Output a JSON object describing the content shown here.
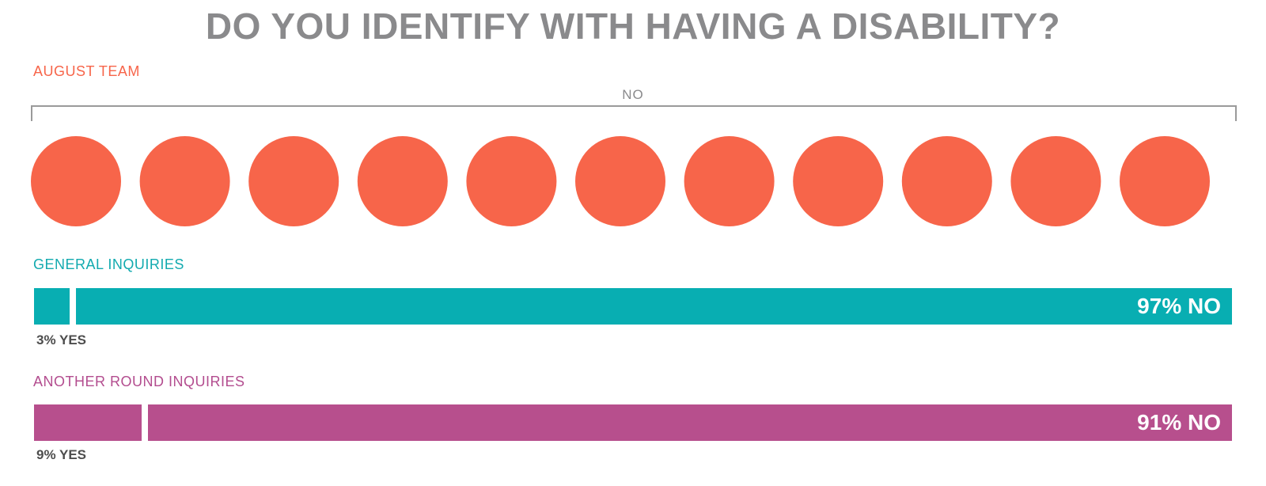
{
  "title": "DO YOU IDENTIFY WITH HAVING A DISABILITY?",
  "colors": {
    "august": "#f7654a",
    "general": "#08aeb2",
    "another": "#b74f8d",
    "title": "#8a8a8c"
  },
  "chart_data": [
    {
      "type": "pictogram",
      "title": "AUGUST TEAM",
      "bracket_label": "NO",
      "categories": [
        "NO"
      ],
      "values": [
        11
      ],
      "unit": "people"
    },
    {
      "type": "bar",
      "title": "GENERAL INQUIRIES",
      "stacked": true,
      "categories": [
        "YES",
        "NO"
      ],
      "values": [
        3,
        97
      ],
      "labels": {
        "yes": "3% YES",
        "no": "97% NO"
      }
    },
    {
      "type": "bar",
      "title": "ANOTHER ROUND INQUIRIES",
      "stacked": true,
      "categories": [
        "YES",
        "NO"
      ],
      "values": [
        9,
        91
      ],
      "labels": {
        "yes": "9% YES",
        "no": "91% NO"
      }
    }
  ]
}
